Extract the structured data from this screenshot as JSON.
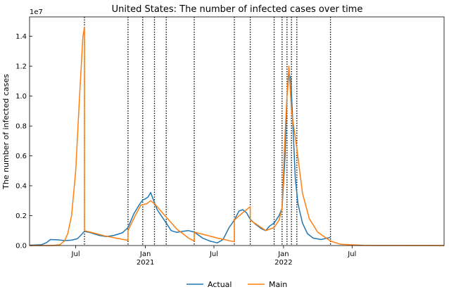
{
  "chart_data": {
    "type": "line",
    "title": "United States: The number of infected cases over time",
    "ylabel": "The number of infected cases",
    "xlabel": "",
    "y_offset_label": "1e7",
    "y_scale": 10000000,
    "xlim": [
      "2020-03-01",
      "2023-03-01"
    ],
    "ylim": [
      0,
      1.53
    ],
    "grid": false,
    "legend_position": "bottom-center",
    "x_ticks": [
      {
        "date": "2020-07-01",
        "label": "Jul",
        "sub": ""
      },
      {
        "date": "2021-01-01",
        "label": "Jan",
        "sub": "2021"
      },
      {
        "date": "2021-07-01",
        "label": "Jul",
        "sub": ""
      },
      {
        "date": "2022-01-01",
        "label": "Jan",
        "sub": "2022"
      },
      {
        "date": "2022-07-01",
        "label": "Jul",
        "sub": ""
      }
    ],
    "y_ticks": [
      {
        "value": 0.0,
        "label": "0.0"
      },
      {
        "value": 0.2,
        "label": "0.2"
      },
      {
        "value": 0.4,
        "label": "0.4"
      },
      {
        "value": 0.6,
        "label": "0.6"
      },
      {
        "value": 0.8,
        "label": "0.8"
      },
      {
        "value": 1.0,
        "label": "1.0"
      },
      {
        "value": 1.2,
        "label": "1.2"
      },
      {
        "value": 1.4,
        "label": "1.4"
      }
    ],
    "vlines": [
      "2020-07-24",
      "2020-11-16",
      "2020-12-25",
      "2021-01-25",
      "2021-02-25",
      "2021-05-10",
      "2021-08-24",
      "2021-10-05",
      "2021-12-07",
      "2021-12-28",
      "2022-01-10",
      "2022-01-22",
      "2022-02-05",
      "2022-05-05"
    ],
    "series": [
      {
        "name": "Actual",
        "color": "#1f77b4",
        "points": [
          [
            "2020-03-01",
            0.002
          ],
          [
            "2020-04-01",
            0.005
          ],
          [
            "2020-04-15",
            0.02
          ],
          [
            "2020-04-25",
            0.04
          ],
          [
            "2020-05-15",
            0.038
          ],
          [
            "2020-06-01",
            0.033
          ],
          [
            "2020-06-20",
            0.036
          ],
          [
            "2020-07-05",
            0.045
          ],
          [
            "2020-07-15",
            0.07
          ],
          [
            "2020-07-24",
            0.095
          ],
          [
            "2020-08-10",
            0.085
          ],
          [
            "2020-09-01",
            0.068
          ],
          [
            "2020-09-20",
            0.06
          ],
          [
            "2020-10-10",
            0.068
          ],
          [
            "2020-11-01",
            0.085
          ],
          [
            "2020-11-16",
            0.12
          ],
          [
            "2020-12-01",
            0.21
          ],
          [
            "2020-12-15",
            0.27
          ],
          [
            "2020-12-25",
            0.305
          ],
          [
            "2020-12-30",
            0.31
          ],
          [
            "2021-01-08",
            0.325
          ],
          [
            "2021-01-15",
            0.355
          ],
          [
            "2021-01-20",
            0.32
          ],
          [
            "2021-02-01",
            0.24
          ],
          [
            "2021-02-25",
            0.15
          ],
          [
            "2021-03-10",
            0.1
          ],
          [
            "2021-03-25",
            0.088
          ],
          [
            "2021-04-10",
            0.095
          ],
          [
            "2021-04-25",
            0.1
          ],
          [
            "2021-05-10",
            0.09
          ],
          [
            "2021-06-01",
            0.05
          ],
          [
            "2021-06-20",
            0.03
          ],
          [
            "2021-07-10",
            0.018
          ],
          [
            "2021-07-25",
            0.04
          ],
          [
            "2021-08-10",
            0.12
          ],
          [
            "2021-08-24",
            0.17
          ],
          [
            "2021-09-05",
            0.23
          ],
          [
            "2021-09-15",
            0.24
          ],
          [
            "2021-09-25",
            0.22
          ],
          [
            "2021-10-05",
            0.175
          ],
          [
            "2021-10-20",
            0.14
          ],
          [
            "2021-11-05",
            0.11
          ],
          [
            "2021-11-15",
            0.1
          ],
          [
            "2021-11-25",
            0.13
          ],
          [
            "2021-12-07",
            0.15
          ],
          [
            "2021-12-20",
            0.2
          ],
          [
            "2021-12-28",
            0.25
          ],
          [
            "2022-01-05",
            0.6
          ],
          [
            "2022-01-10",
            1.0
          ],
          [
            "2022-01-15",
            1.15
          ],
          [
            "2022-01-20",
            1.12
          ],
          [
            "2022-01-25",
            0.85
          ],
          [
            "2022-02-01",
            0.45
          ],
          [
            "2022-02-08",
            0.28
          ],
          [
            "2022-02-20",
            0.15
          ],
          [
            "2022-03-05",
            0.08
          ],
          [
            "2022-03-20",
            0.05
          ],
          [
            "2022-04-10",
            0.04
          ],
          [
            "2022-05-05",
            0.055
          ]
        ]
      },
      {
        "name": "Main",
        "color": "#ff7f0e",
        "points": [
          [
            "2020-03-01",
            0.0
          ],
          [
            "2020-05-01",
            0.0
          ],
          [
            "2020-05-20",
            0.005
          ],
          [
            "2020-06-01",
            0.03
          ],
          [
            "2020-06-10",
            0.08
          ],
          [
            "2020-06-20",
            0.2
          ],
          [
            "2020-07-01",
            0.5
          ],
          [
            "2020-07-10",
            0.95
          ],
          [
            "2020-07-20",
            1.4
          ],
          [
            "2020-07-24",
            1.46
          ],
          [
            "2020-07-24",
            0.1
          ],
          [
            "2020-08-15",
            0.085
          ],
          [
            "2020-09-15",
            0.065
          ],
          [
            "2020-10-15",
            0.05
          ],
          [
            "2020-11-16",
            0.035
          ],
          [
            "2020-11-16",
            0.1
          ],
          [
            "2020-12-05",
            0.2
          ],
          [
            "2020-12-20",
            0.27
          ],
          [
            "2021-01-05",
            0.28
          ],
          [
            "2021-01-15",
            0.3
          ],
          [
            "2021-01-25",
            0.28
          ],
          [
            "2021-02-25",
            0.19
          ],
          [
            "2021-03-25",
            0.11
          ],
          [
            "2021-04-25",
            0.05
          ],
          [
            "2021-05-10",
            0.03
          ],
          [
            "2021-05-10",
            0.09
          ],
          [
            "2021-06-10",
            0.07
          ],
          [
            "2021-07-10",
            0.05
          ],
          [
            "2021-08-24",
            0.025
          ],
          [
            "2021-08-24",
            0.17
          ],
          [
            "2021-09-15",
            0.22
          ],
          [
            "2021-10-05",
            0.26
          ],
          [
            "2021-10-05",
            0.17
          ],
          [
            "2021-11-15",
            0.1
          ],
          [
            "2021-12-07",
            0.12
          ],
          [
            "2021-12-20",
            0.17
          ],
          [
            "2021-12-28",
            0.25
          ],
          [
            "2022-01-05",
            0.75
          ],
          [
            "2022-01-10",
            1.0
          ],
          [
            "2022-01-15",
            1.2
          ],
          [
            "2022-01-22",
            0.9
          ],
          [
            "2022-02-05",
            0.65
          ],
          [
            "2022-02-20",
            0.35
          ],
          [
            "2022-03-10",
            0.18
          ],
          [
            "2022-04-01",
            0.09
          ],
          [
            "2022-05-05",
            0.03
          ],
          [
            "2022-06-01",
            0.008
          ],
          [
            "2022-08-01",
            0.001
          ],
          [
            "2023-03-01",
            0.0
          ]
        ]
      }
    ]
  }
}
